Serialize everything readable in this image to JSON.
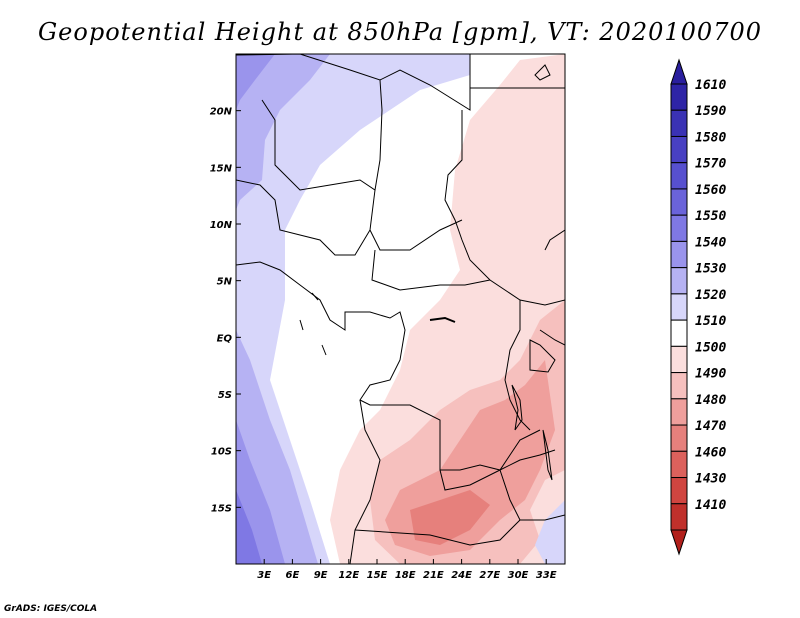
{
  "title": "Geopotential Height at 850hPa [gpm], VT: 2020100700",
  "footer": "GrADS: IGES/COLA",
  "map": {
    "variable": "Geopotential Height",
    "level": "850hPa",
    "units": "gpm",
    "valid_time": "2020100700",
    "lon_range": [
      0,
      35
    ],
    "lat_range": [
      -20,
      25
    ],
    "lat_ticks": [
      {
        "value": 20,
        "label": "20N"
      },
      {
        "value": 15,
        "label": "15N"
      },
      {
        "value": 10,
        "label": "10N"
      },
      {
        "value": 5,
        "label": "5N"
      },
      {
        "value": 0,
        "label": "EQ"
      },
      {
        "value": -5,
        "label": "5S"
      },
      {
        "value": -10,
        "label": "10S"
      },
      {
        "value": -15,
        "label": "15S"
      }
    ],
    "lon_ticks": [
      {
        "value": 3,
        "label": "3E"
      },
      {
        "value": 6,
        "label": "6E"
      },
      {
        "value": 9,
        "label": "9E"
      },
      {
        "value": 12,
        "label": "12E"
      },
      {
        "value": 15,
        "label": "15E"
      },
      {
        "value": 18,
        "label": "18E"
      },
      {
        "value": 21,
        "label": "21E"
      },
      {
        "value": 24,
        "label": "24E"
      },
      {
        "value": 27,
        "label": "27E"
      },
      {
        "value": 30,
        "label": "30E"
      },
      {
        "value": 33,
        "label": "33E"
      }
    ]
  },
  "colorbar": {
    "top_arrow_color": "#2a1f9e",
    "bottom_arrow_color": "#b2201c",
    "levels": [
      {
        "label": "1610",
        "color": "#2e24a6"
      },
      {
        "label": "1590",
        "color": "#3a32b4"
      },
      {
        "label": "1580",
        "color": "#4840c2"
      },
      {
        "label": "1570",
        "color": "#5750cf"
      },
      {
        "label": "1560",
        "color": "#6a63da"
      },
      {
        "label": "1550",
        "color": "#7f78e4"
      },
      {
        "label": "1540",
        "color": "#9a94ec"
      },
      {
        "label": "1530",
        "color": "#b6b2f3"
      },
      {
        "label": "1520",
        "color": "#d7d6fa"
      },
      {
        "label": "1510",
        "color": "#ffffff"
      },
      {
        "label": "1500",
        "color": "#fbdedd"
      },
      {
        "label": "1490",
        "color": "#f6c0be"
      },
      {
        "label": "1480",
        "color": "#ef9f9c"
      },
      {
        "label": "1470",
        "color": "#e6807c"
      },
      {
        "label": "1460",
        "color": "#dc615c"
      },
      {
        "label": "1430",
        "color": "#d04540"
      },
      {
        "label": "1410",
        "color": "#c0302b"
      }
    ]
  }
}
